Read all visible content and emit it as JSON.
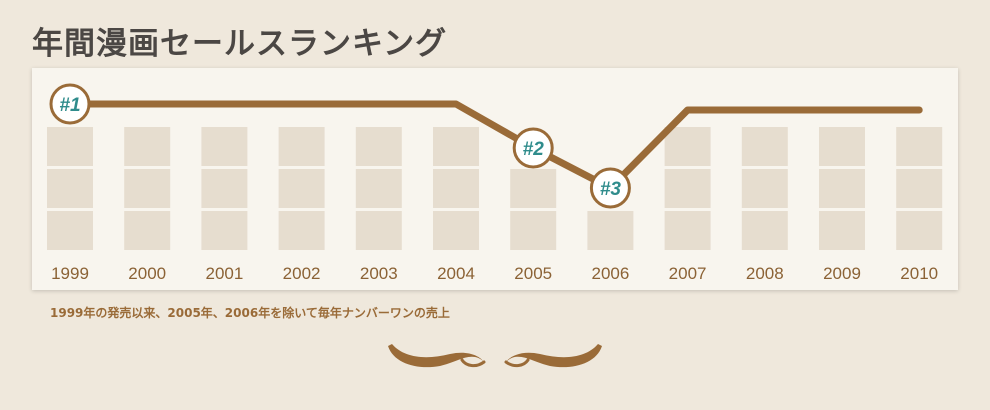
{
  "title": "年間漫画セールスランキング",
  "caption": "1999年の発売以来、2005年、2006年を除いて毎年ナンバーワンの売上",
  "colors": {
    "line": "#9a6b38",
    "block": "#e6ddcf",
    "badge_text": "#2f8c8c",
    "badge_bg": "#ffffff",
    "tick_text": "#8b6235",
    "background": "#efe8dc",
    "panel": "#f8f5ee"
  },
  "chart_data": {
    "type": "line",
    "title": "年間漫画セールスランキング",
    "xlabel": "",
    "ylabel": "",
    "x": [
      "1999",
      "2000",
      "2001",
      "2002",
      "2003",
      "2004",
      "2005",
      "2006",
      "2007",
      "2008",
      "2009",
      "2010"
    ],
    "ranks": [
      1,
      1,
      1,
      1,
      1,
      1,
      2,
      3,
      1,
      1,
      1,
      1
    ],
    "rank_labels": [
      {
        "year": "1999",
        "label": "#1"
      },
      {
        "year": "2005",
        "label": "#2"
      },
      {
        "year": "2006",
        "label": "#3"
      }
    ],
    "y_axis": "rank (inverted, #1 at top)",
    "ylim": [
      1,
      3
    ],
    "grid": false,
    "legend": "none"
  }
}
